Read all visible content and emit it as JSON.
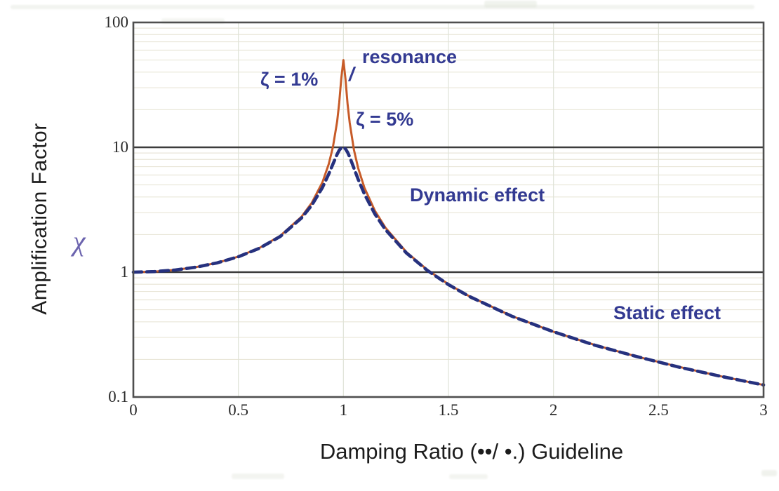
{
  "figure": {
    "y_axis_title": "Amplification Factor",
    "y_axis_symbol": "χ",
    "x_axis_title": "Damping Ratio (••/ •.) Guideline"
  },
  "annotations": {
    "resonance": "resonance",
    "resonance_pointer": "/",
    "zeta1": "ζ = 1%",
    "zeta5": "ζ = 5%",
    "dynamic": "Dynamic effect",
    "static": "Static effect"
  },
  "colors": {
    "annotation_navy": "#333a92",
    "chi_symbol": "#6b63ae",
    "curve_zeta1_orange": "#c75b28",
    "curve_zeta5_navy": "#26317e",
    "reference_line": "#3c3c3c",
    "plot_border": "#4f4f4f",
    "grid_horizontal": "#e9e6d8",
    "grid_vertical": "#dfe3d8"
  },
  "chart_data": {
    "type": "line",
    "title": "",
    "xlabel": "Damping Ratio (••/ •.) Guideline",
    "ylabel": "Amplification Factor",
    "x_range": [
      0,
      3
    ],
    "y_range": [
      0.1,
      100
    ],
    "y_scale": "log",
    "grid": "log-minor-horizontal plus vertical at 0.5 steps",
    "legend_position": "inline-annotations",
    "x_tick_values": [
      0,
      0.5,
      1,
      1.5,
      2,
      2.5,
      3
    ],
    "x_tick_labels": [
      "0",
      "0.5",
      "1",
      "1.5",
      "2",
      "2.5",
      "3"
    ],
    "y_tick_values": [
      100,
      10,
      1,
      0.1
    ],
    "y_tick_labels": [
      "100",
      "10",
      "1",
      "0.1"
    ],
    "reference_lines_y": [
      10,
      1
    ],
    "x": [
      0,
      0.1,
      0.2,
      0.3,
      0.4,
      0.5,
      0.6,
      0.7,
      0.8,
      0.85,
      0.9,
      0.93,
      0.95,
      0.97,
      0.98,
      0.99,
      1.0,
      1.01,
      1.02,
      1.03,
      1.05,
      1.07,
      1.1,
      1.15,
      1.2,
      1.3,
      1.4,
      1.5,
      1.6,
      1.8,
      2.0,
      2.2,
      2.4,
      2.6,
      2.8,
      3.0
    ],
    "series": [
      {
        "name": "zeta-1-percent",
        "label": "ζ = 1%",
        "style": "solid",
        "color": "#c75b28",
        "values": [
          1.0,
          1.01,
          1.042,
          1.099,
          1.19,
          1.333,
          1.562,
          1.96,
          2.775,
          3.6,
          5.24,
          7.33,
          10.07,
          16.08,
          22.6,
          35.6,
          50.0,
          35.1,
          22.1,
          15.7,
          9.56,
          6.83,
          4.74,
          3.1,
          2.27,
          1.448,
          1.041,
          0.8,
          0.641,
          0.446,
          0.333,
          0.26,
          0.21,
          0.174,
          0.146,
          0.125
        ]
      },
      {
        "name": "zeta-5-percent",
        "label": "ζ = 5%",
        "style": "dashed",
        "color": "#26317e",
        "values": [
          1.0,
          1.01,
          1.041,
          1.098,
          1.188,
          1.329,
          1.554,
          1.935,
          2.712,
          3.446,
          4.757,
          6.1,
          7.34,
          8.8,
          9.46,
          9.9,
          10.0,
          9.71,
          9.11,
          8.36,
          6.81,
          5.55,
          4.22,
          2.92,
          2.19,
          1.424,
          1.031,
          0.794,
          0.638,
          0.445,
          0.333,
          0.259,
          0.21,
          0.173,
          0.146,
          0.125
        ]
      }
    ]
  }
}
